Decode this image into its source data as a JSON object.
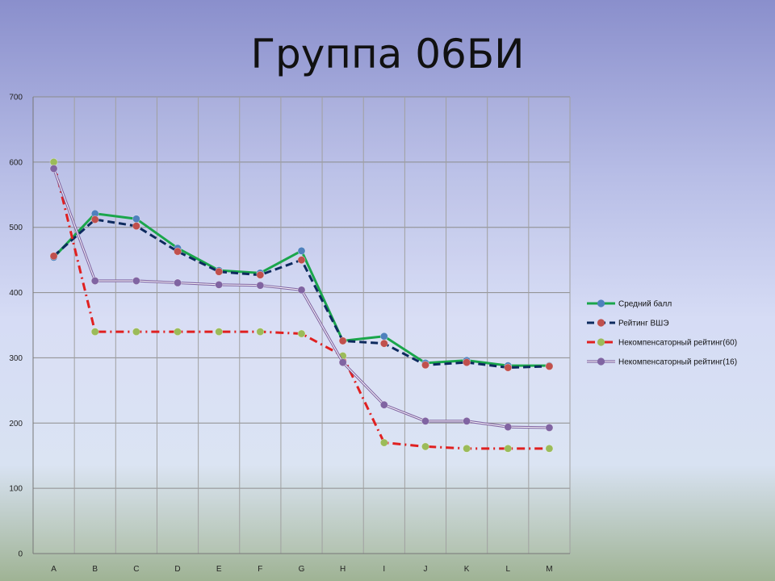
{
  "slide": {
    "title": "Группа 06БИ"
  },
  "chart_data": {
    "type": "line",
    "categories": [
      "A",
      "B",
      "C",
      "D",
      "E",
      "F",
      "G",
      "H",
      "I",
      "J",
      "K",
      "L",
      "M"
    ],
    "ylim": [
      0,
      700
    ],
    "yticks": [
      0,
      100,
      200,
      300,
      400,
      500,
      600,
      700
    ],
    "grid": true,
    "legend_position": "right",
    "series": [
      {
        "name": "Средний балл",
        "color": "#1aa64b",
        "marker": "#4f81bd",
        "style": "solid",
        "values": [
          454,
          521,
          513,
          468,
          434,
          430,
          464,
          326,
          333,
          292,
          296,
          288,
          288
        ]
      },
      {
        "name": "Рейтинг ВШЭ",
        "color": "#0d2a5e",
        "marker": "#c0504d",
        "style": "dash",
        "values": [
          456,
          512,
          502,
          463,
          432,
          427,
          450,
          326,
          322,
          289,
          293,
          285,
          287
        ]
      },
      {
        "name": "Некомпенсаторный рейтинг(60)",
        "color": "#e02020",
        "marker": "#9bbb59",
        "style": "dashdot",
        "values": [
          600,
          340,
          340,
          340,
          340,
          340,
          337,
          303,
          170,
          164,
          161,
          161,
          161
        ]
      },
      {
        "name": "Некомпенсаторный рейтинг(16)",
        "color": "#8064a2",
        "marker": "#8064a2",
        "style": "double",
        "values": [
          590,
          418,
          418,
          415,
          412,
          411,
          404,
          293,
          228,
          203,
          203,
          194,
          193
        ]
      }
    ]
  }
}
